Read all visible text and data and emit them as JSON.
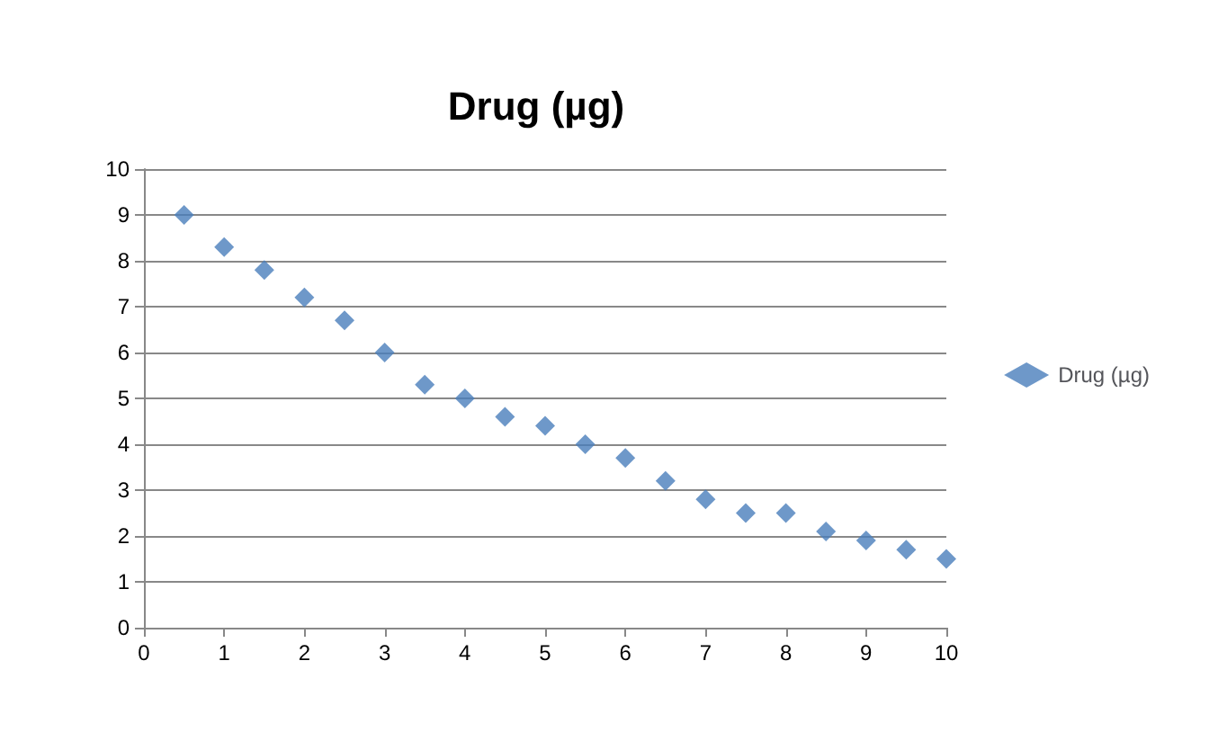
{
  "chart_data": {
    "type": "scatter",
    "title": "Drug (µg)",
    "x": [
      0.5,
      1,
      1.5,
      2,
      2.5,
      3,
      3.5,
      4,
      4.5,
      5,
      5.5,
      6,
      6.5,
      7,
      7.5,
      8,
      8.5,
      9,
      9.5,
      10
    ],
    "series": [
      {
        "name": "Drug (µg)",
        "color": "#4a7ebb",
        "values": [
          9.0,
          8.3,
          7.8,
          7.2,
          6.7,
          6.0,
          5.3,
          5.0,
          4.6,
          4.4,
          4.0,
          3.7,
          3.2,
          2.8,
          2.5,
          2.5,
          2.1,
          1.9,
          1.7,
          1.5
        ]
      }
    ],
    "xlim": [
      0,
      10
    ],
    "xticks": [
      0,
      1,
      2,
      3,
      4,
      5,
      6,
      7,
      8,
      9,
      10
    ],
    "ylim": [
      0,
      10
    ],
    "yticks": [
      0,
      1,
      2,
      3,
      4,
      5,
      6,
      7,
      8,
      9,
      10
    ],
    "grid": "y",
    "legend": "right",
    "marker": "diamond"
  }
}
